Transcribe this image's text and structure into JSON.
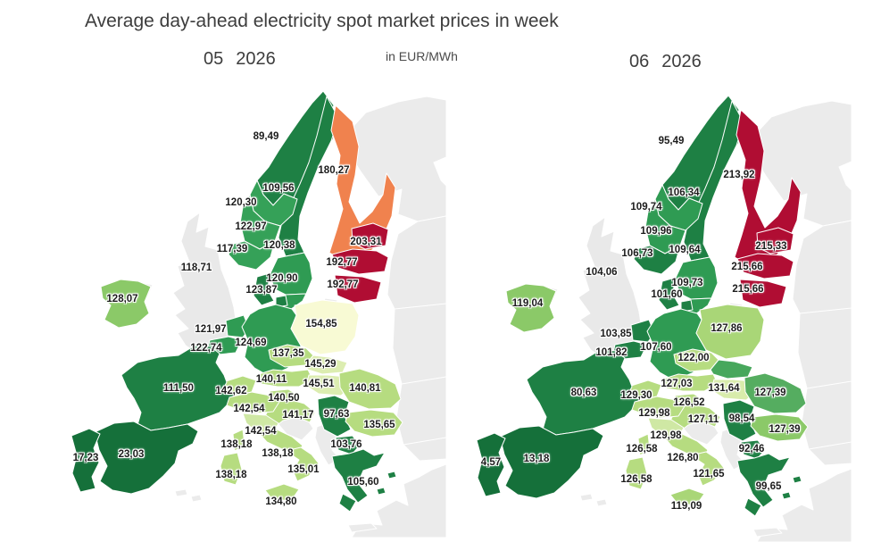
{
  "header": {
    "title": "Average day-ahead electricity spot market prices in week",
    "unit_label": "in EUR/MWh"
  },
  "chart_data": {
    "type": "choropleth",
    "subtype": "europe-electricity-price-map",
    "unit": "EUR/MWh",
    "value_format": "comma-decimal",
    "color_legend": {
      "very_low_price": "#15703a",
      "low_price": "#1e8044",
      "mid_price": "#2f9b53",
      "elevated_price": "#b6dc80",
      "high_mid_price": "#f8fad4",
      "high_price": "#f0824e",
      "very_high_price": "#b00d33",
      "no_data_land": "#ebebeb",
      "no_scale_country": "#e9e9e9",
      "sea": "#ffffff",
      "border": "#ffffff"
    },
    "maps": [
      {
        "week_number": "05",
        "year": "2026",
        "regions": [
          {
            "id": "no_north",
            "name": "Norway (north)",
            "label": "89,49",
            "value": 89.49,
            "color": "#1e8044"
          },
          {
            "id": "se_north",
            "name": "Sweden (north)",
            "label": "109,56",
            "value": 109.56,
            "color": "#1e8044"
          },
          {
            "id": "no_mid",
            "name": "Norway (mid)",
            "label": "120,30",
            "value": 120.3,
            "color": "#35a158"
          },
          {
            "id": "no_west",
            "name": "Norway (west)",
            "label": "122,97",
            "value": 122.97,
            "color": "#35a158"
          },
          {
            "id": "no_south",
            "name": "Norway (south)",
            "label": "117,39",
            "value": 117.39,
            "color": "#35a158"
          },
          {
            "id": "se_central",
            "name": "Sweden (central)",
            "label": "120,38",
            "value": 120.38,
            "color": "#2f9b53"
          },
          {
            "id": "se_south",
            "name": "Sweden (south)",
            "label": "120,90",
            "value": 120.9,
            "color": "#2f9b53"
          },
          {
            "id": "fi",
            "name": "Finland",
            "label": "180,27",
            "value": 180.27,
            "color": "#f0824e"
          },
          {
            "id": "ee",
            "name": "Estonia",
            "label": "203,31",
            "value": 203.31,
            "color": "#b00d33"
          },
          {
            "id": "lv",
            "name": "Latvia",
            "label": "192,77",
            "value": 192.77,
            "color": "#b00d33"
          },
          {
            "id": "lt",
            "name": "Lithuania",
            "label": "192,77",
            "value": 192.77,
            "color": "#b00d33"
          },
          {
            "id": "dk",
            "name": "Denmark",
            "label": "123,87",
            "value": 123.87,
            "color": "#1e8044"
          },
          {
            "id": "uk",
            "name": "United Kingdom",
            "label": "118,71",
            "value": 118.71,
            "color": "#e9e9e9"
          },
          {
            "id": "ie",
            "name": "Ireland",
            "label": "128,07",
            "value": 128.07,
            "color": "#8bc968"
          },
          {
            "id": "nl",
            "name": "Netherlands",
            "label": "121,97",
            "value": 121.97,
            "color": "#2f9b53"
          },
          {
            "id": "be",
            "name": "Belgium",
            "label": "122,74",
            "value": 122.74,
            "color": "#2f9b53"
          },
          {
            "id": "de",
            "name": "Germany",
            "label": "124,69",
            "value": 124.69,
            "color": "#2f9b53"
          },
          {
            "id": "pl",
            "name": "Poland",
            "label": "154,85",
            "value": 154.85,
            "color": "#f8fad4"
          },
          {
            "id": "cz",
            "name": "Czechia",
            "label": "137,35",
            "value": 137.35,
            "color": "#b6dc80"
          },
          {
            "id": "sk",
            "name": "Slovakia",
            "label": "145,29",
            "value": 145.29,
            "color": "#dcedb0"
          },
          {
            "id": "at",
            "name": "Austria",
            "label": "140,11",
            "value": 140.11,
            "color": "#b6dc80"
          },
          {
            "id": "hu",
            "name": "Hungary",
            "label": "145,51",
            "value": 145.51,
            "color": "#dcedb0"
          },
          {
            "id": "ch",
            "name": "Switzerland",
            "label": "142,62",
            "value": 142.62,
            "color": "#b6dc80"
          },
          {
            "id": "si",
            "name": "Slovenia",
            "label": "140,50",
            "value": 140.5,
            "color": "#b6dc80"
          },
          {
            "id": "hr",
            "name": "Croatia",
            "label": "141,17",
            "value": 141.17,
            "color": "#b6dc80"
          },
          {
            "id": "rs",
            "name": "Serbia",
            "label": "97,63",
            "value": 97.63,
            "color": "#1e8044"
          },
          {
            "id": "ro",
            "name": "Romania",
            "label": "140,81",
            "value": 140.81,
            "color": "#b6dc80"
          },
          {
            "id": "bg",
            "name": "Bulgaria",
            "label": "135,65",
            "value": 135.65,
            "color": "#b6dc80"
          },
          {
            "id": "mk",
            "name": "North Macedonia",
            "label": "103,76",
            "value": 103.76,
            "color": "#1e8044"
          },
          {
            "id": "gr",
            "name": "Greece",
            "label": "105,60",
            "value": 105.6,
            "color": "#1e8044"
          },
          {
            "id": "fr",
            "name": "France",
            "label": "111,50",
            "value": 111.5,
            "color": "#1e8044"
          },
          {
            "id": "es",
            "name": "Spain",
            "label": "23,03",
            "value": 23.03,
            "color": "#15703a"
          },
          {
            "id": "pt",
            "name": "Portugal",
            "label": "17,23",
            "value": 17.23,
            "color": "#15703a"
          },
          {
            "id": "it_n",
            "name": "Italy (north)",
            "label": "142,54",
            "value": 142.54,
            "color": "#b6dc80"
          },
          {
            "id": "it_cn",
            "name": "Italy (centre-north)",
            "label": "142,54",
            "value": 142.54,
            "color": "#cfe8a4"
          },
          {
            "id": "it_c",
            "name": "Italy (centre)",
            "label": "138,18",
            "value": 138.18,
            "color": "#b6dc80"
          },
          {
            "id": "it_s",
            "name": "Italy (south)",
            "label": "135,01",
            "value": 135.01,
            "color": "#b6dc80"
          },
          {
            "id": "sicily",
            "name": "Sicily",
            "label": "134,80",
            "value": 134.8,
            "color": "#b6dc80"
          },
          {
            "id": "sardinia",
            "name": "Sardinia",
            "label": "138,18",
            "value": 138.18,
            "color": "#b6dc80"
          },
          {
            "id": "corsica",
            "name": "Corsica",
            "label": "138,18",
            "value": 138.18,
            "color": "#b6dc80"
          }
        ]
      },
      {
        "week_number": "06",
        "year": "2026",
        "regions": [
          {
            "id": "no_north",
            "name": "Norway (north)",
            "label": "95,49",
            "value": 95.49,
            "color": "#1e8044"
          },
          {
            "id": "se_north",
            "name": "Sweden (north)",
            "label": "106,34",
            "value": 106.34,
            "color": "#1e8044"
          },
          {
            "id": "no_mid",
            "name": "Norway (mid)",
            "label": "109,74",
            "value": 109.74,
            "color": "#2f9b53"
          },
          {
            "id": "no_west",
            "name": "Norway (west)",
            "label": "109,96",
            "value": 109.96,
            "color": "#2f9b53"
          },
          {
            "id": "no_south",
            "name": "Norway (south)",
            "label": "106,73",
            "value": 106.73,
            "color": "#1e8044"
          },
          {
            "id": "se_central",
            "name": "Sweden (central)",
            "label": "109,64",
            "value": 109.64,
            "color": "#2f9b53"
          },
          {
            "id": "se_south",
            "name": "Sweden (south)",
            "label": "109,73",
            "value": 109.73,
            "color": "#2f9b53"
          },
          {
            "id": "fi",
            "name": "Finland",
            "label": "213,92",
            "value": 213.92,
            "color": "#b00d33"
          },
          {
            "id": "ee",
            "name": "Estonia",
            "label": "215,33",
            "value": 215.33,
            "color": "#b00d33"
          },
          {
            "id": "lv",
            "name": "Latvia",
            "label": "215,66",
            "value": 215.66,
            "color": "#b00d33"
          },
          {
            "id": "lt",
            "name": "Lithuania",
            "label": "215,66",
            "value": 215.66,
            "color": "#b00d33"
          },
          {
            "id": "dk",
            "name": "Denmark",
            "label": "101,60",
            "value": 101.6,
            "color": "#1e8044"
          },
          {
            "id": "uk",
            "name": "United Kingdom",
            "label": "104,06",
            "value": 104.06,
            "color": "#e9e9e9"
          },
          {
            "id": "ie",
            "name": "Ireland",
            "label": "119,04",
            "value": 119.04,
            "color": "#8bc968"
          },
          {
            "id": "nl",
            "name": "Netherlands",
            "label": "103,85",
            "value": 103.85,
            "color": "#1e8044"
          },
          {
            "id": "be",
            "name": "Belgium",
            "label": "101,82",
            "value": 101.82,
            "color": "#1e8044"
          },
          {
            "id": "de",
            "name": "Germany",
            "label": "107,60",
            "value": 107.6,
            "color": "#2f9b53"
          },
          {
            "id": "pl",
            "name": "Poland",
            "label": "127,86",
            "value": 127.86,
            "color": "#a9d677"
          },
          {
            "id": "cz",
            "name": "Czechia",
            "label": "122,00",
            "value": 122.0,
            "color": "#b6dc80"
          },
          {
            "id": "sk",
            "name": "Slovakia",
            "label": "",
            "value": null,
            "color": "#47a75c"
          },
          {
            "id": "at",
            "name": "Austria",
            "label": "127,03",
            "value": 127.03,
            "color": "#b6dc80"
          },
          {
            "id": "hu",
            "name": "Hungary",
            "label": "131,64",
            "value": 131.64,
            "color": "#d8ecab"
          },
          {
            "id": "ch",
            "name": "Switzerland",
            "label": "129,30",
            "value": 129.3,
            "color": "#b6dc80"
          },
          {
            "id": "si",
            "name": "Slovenia",
            "label": "126,52",
            "value": 126.52,
            "color": "#b6dc80"
          },
          {
            "id": "hr",
            "name": "Croatia",
            "label": "127,11",
            "value": 127.11,
            "color": "#b6dc80"
          },
          {
            "id": "rs",
            "name": "Serbia",
            "label": "98,54",
            "value": 98.54,
            "color": "#1e8044"
          },
          {
            "id": "ro",
            "name": "Romania",
            "label": "127,39",
            "value": 127.39,
            "color": "#55ad60"
          },
          {
            "id": "bg",
            "name": "Bulgaria",
            "label": "127,39",
            "value": 127.39,
            "color": "#8bc968"
          },
          {
            "id": "mk",
            "name": "North Macedonia",
            "label": "92,46",
            "value": 92.46,
            "color": "#1e8044"
          },
          {
            "id": "gr",
            "name": "Greece",
            "label": "99,65",
            "value": 99.65,
            "color": "#1e8044"
          },
          {
            "id": "fr",
            "name": "France",
            "label": "80,63",
            "value": 80.63,
            "color": "#1e8044"
          },
          {
            "id": "es",
            "name": "Spain",
            "label": "13,18",
            "value": 13.18,
            "color": "#15703a"
          },
          {
            "id": "pt",
            "name": "Portugal",
            "label": "4,57",
            "value": 4.57,
            "color": "#15703a"
          },
          {
            "id": "it_n",
            "name": "Italy (north)",
            "label": "129,98",
            "value": 129.98,
            "color": "#b6dc80"
          },
          {
            "id": "it_cn",
            "name": "Italy (centre-north)",
            "label": "129,98",
            "value": 129.98,
            "color": "#cfe8a4"
          },
          {
            "id": "it_c",
            "name": "Italy (centre)",
            "label": "126,80",
            "value": 126.8,
            "color": "#b6dc80"
          },
          {
            "id": "it_s",
            "name": "Italy (south)",
            "label": "121,65",
            "value": 121.65,
            "color": "#b6dc80"
          },
          {
            "id": "sicily",
            "name": "Sicily",
            "label": "119,09",
            "value": 119.09,
            "color": "#a9d677"
          },
          {
            "id": "sardinia",
            "name": "Sardinia",
            "label": "126,58",
            "value": 126.58,
            "color": "#b6dc80"
          },
          {
            "id": "corsica",
            "name": "Corsica",
            "label": "126,58",
            "value": 126.58,
            "color": "#b6dc80"
          }
        ]
      }
    ]
  }
}
